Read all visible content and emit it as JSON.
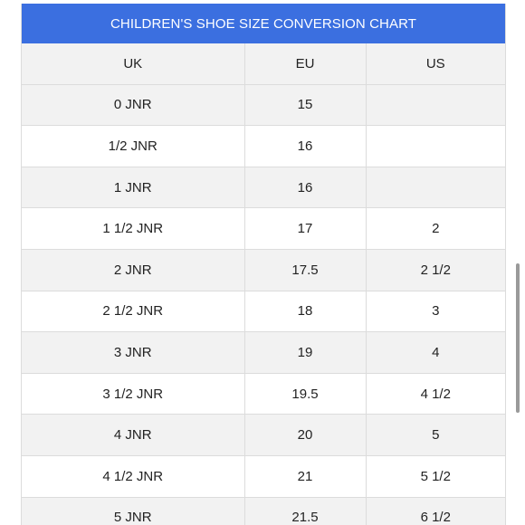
{
  "title": "CHILDREN'S SHOE SIZE CONVERSION CHART",
  "colors": {
    "header": "#3b6fe0",
    "shaded_row": "#f2f2f2",
    "border": "#dcdcdc"
  },
  "columns": [
    "UK",
    "EU",
    "US"
  ],
  "rows": [
    [
      "0 JNR",
      "15",
      ""
    ],
    [
      "1/2 JNR",
      "16",
      ""
    ],
    [
      "1 JNR",
      "16",
      ""
    ],
    [
      "1 1/2 JNR",
      "17",
      "2"
    ],
    [
      "2 JNR",
      "17.5",
      "2 1/2"
    ],
    [
      "2 1/2 JNR",
      "18",
      "3"
    ],
    [
      "3 JNR",
      "19",
      "4"
    ],
    [
      "3 1/2 JNR",
      "19.5",
      "4 1/2"
    ],
    [
      "4 JNR",
      "20",
      "5"
    ],
    [
      "4 1/2 JNR",
      "21",
      "5 1/2"
    ],
    [
      "5 JNR",
      "21.5",
      "6 1/2"
    ]
  ]
}
